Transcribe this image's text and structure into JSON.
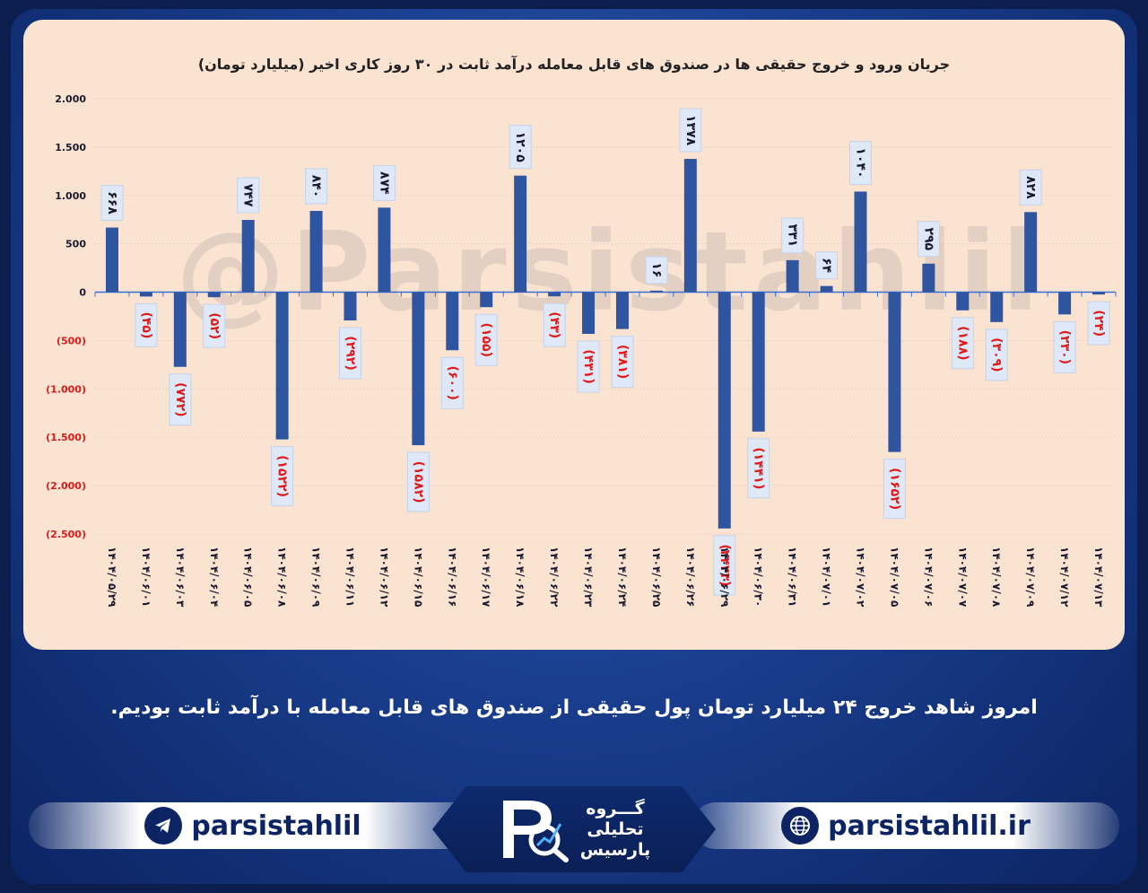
{
  "chart_data": {
    "type": "bar",
    "title": "جریان ورود و خروج حقیقی ها در صندوق های قابل معامله درآمد ثابت در ۳۰ روز کاری اخیر (میلیارد تومان)",
    "ylim": [
      -2500,
      2000
    ],
    "y_ticks": [
      2000,
      1500,
      1000,
      500,
      0,
      -500,
      -1000,
      -1500,
      -2000,
      -2500
    ],
    "y_tick_labels": [
      "2.000",
      "1.500",
      "1.000",
      "500",
      "0",
      "(500)",
      "(1.000)",
      "(1.500)",
      "(2.000)",
      "(2.500)"
    ],
    "categories": [
      "۱۴۰۴/۰۵/۲۹",
      "۱۴۰۴/۰۶/۰۱",
      "۱۴۰۴/۰۶/۰۳",
      "۱۴۰۴/۰۶/۰۴",
      "۱۴۰۴/۰۶/۰۵",
      "۱۴۰۴/۰۶/۰۸",
      "۱۴۰۴/۰۶/۰۹",
      "۱۴۰۴/۰۶/۱۱",
      "۱۴۰۴/۰۶/۱۲",
      "۱۴۰۴/۰۶/۱۵",
      "۱۴۰۴/۰۶/۱۶",
      "۱۴۰۴/۰۶/۱۷",
      "۱۴۰۴/۰۶/۱۸",
      "۱۴۰۴/۰۶/۲۲",
      "۱۴۰۴/۰۶/۲۳",
      "۱۴۰۴/۰۶/۲۴",
      "۱۴۰۴/۰۶/۲۵",
      "۱۴۰۴/۰۶/۲۶",
      "۱۴۰۴/۰۶/۲۹",
      "۱۴۰۴/۰۶/۳۰",
      "۱۴۰۴/۰۶/۳۱",
      "۱۴۰۴/۰۷/۰۱",
      "۱۴۰۴/۰۷/۰۲",
      "۱۴۰۴/۰۷/۰۵",
      "۱۴۰۴/۰۷/۰۶",
      "۱۴۰۴/۰۷/۰۷",
      "۱۴۰۴/۰۷/۰۸",
      "۱۴۰۴/۰۷/۰۹",
      "۱۴۰۴/۰۷/۱۲",
      "۱۴۰۴/۰۷/۱۳"
    ],
    "values": [
      668,
      -45,
      -772,
      -52,
      747,
      -1522,
      840,
      -292,
      874,
      -1582,
      -600,
      -155,
      1205,
      -43,
      -431,
      -381,
      16,
      1378,
      -2443,
      -1441,
      331,
      64,
      1040,
      -1652,
      295,
      -188,
      -309,
      828,
      -230,
      -24
    ],
    "data_labels": [
      "۶۶۸",
      "(۴۵)",
      "(۷۷۲)",
      "(۵۲)",
      "۷۴۷",
      "(۱۵۲۲)",
      "۸۴۰",
      "(۲۹۲)",
      "۸۷۴",
      "(۱۵۸۲)",
      "(۶۰۰)",
      "(۱۵۵)",
      "۱۲۰۵",
      "(۴۳)",
      "(۴۳۱)",
      "(۳۸۱)",
      "۱۶",
      "۱۳۷۸",
      "(۲۴۴۳)",
      "(۱۴۴۱)",
      "۳۳۱",
      "۶۴",
      "۱۰۴۰",
      "(۱۶۵۲)",
      "۲۹۵",
      "(۱۸۸)",
      "(۳۰۹)",
      "۸۲۸",
      "(۲۳۰)",
      "(۲۴)"
    ],
    "bar_color": "#2f54a0",
    "positive_label_color": "#1a1a2e",
    "negative_label_color": "#e01a1a",
    "grid": true
  },
  "watermark": "@Parsistahlil",
  "caption": "امروز شاهد خروج ۲۴ میلیارد تومان پول حقیقی از صندوق های قابل معامله با درآمد ثابت بودیم.",
  "footer": {
    "telegram_handle": "parsistahlil",
    "website": "parsistahlil.ir",
    "logo_lines": [
      "گـــروه",
      "تحلیلی",
      "پارسیس"
    ]
  }
}
